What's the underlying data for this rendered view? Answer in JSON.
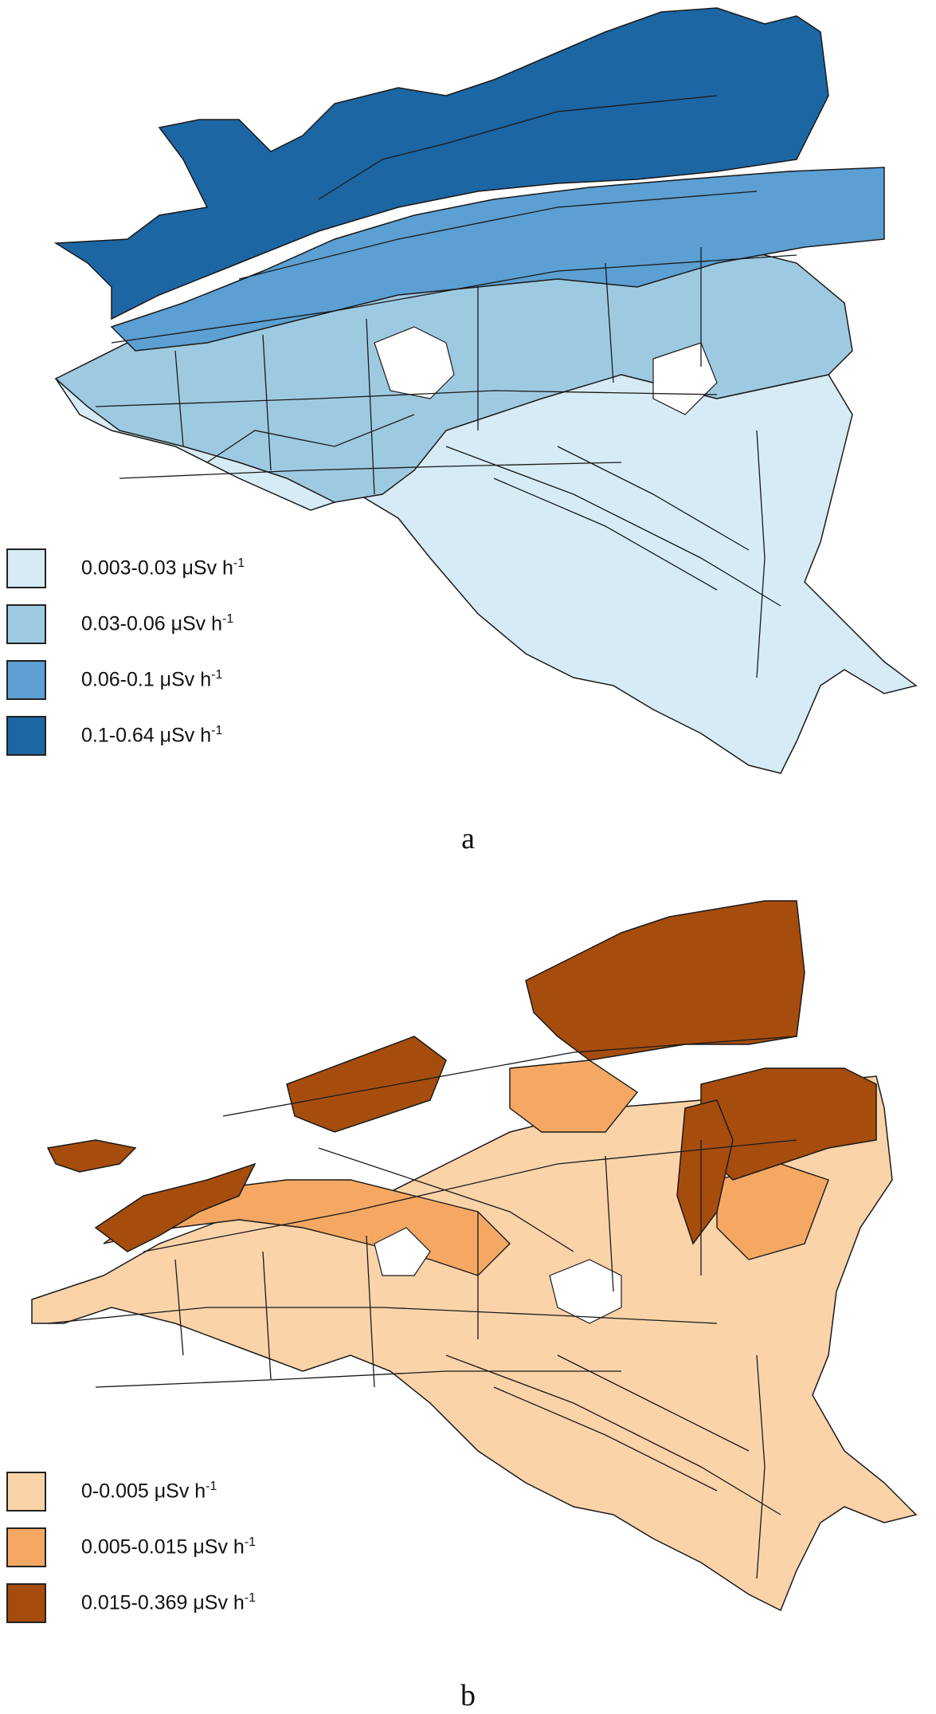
{
  "figure": {
    "panels": [
      {
        "caption": "a",
        "legend": [
          {
            "range": "0.003-0.03 μSv h",
            "unit_exp": "-1",
            "color": "#d6ebf6"
          },
          {
            "range": "0.03-0.06 μSv h",
            "unit_exp": "-1",
            "color": "#9ecae1"
          },
          {
            "range": "0.06-0.1 μSv h",
            "unit_exp": "-1",
            "color": "#5b9fd3"
          },
          {
            "range": "0.1-0.64 μSv h",
            "unit_exp": "-1",
            "color": "#1c66a4"
          }
        ]
      },
      {
        "caption": "b",
        "legend": [
          {
            "range": "0-0.005 μSv h",
            "unit_exp": "-1",
            "color": "#fbd3a9"
          },
          {
            "range": "0.005-0.015 μSv h",
            "unit_exp": "-1",
            "color": "#f5a863"
          },
          {
            "range": "0.015-0.369 μSv h",
            "unit_exp": "-1",
            "color": "#a64d0e"
          }
        ]
      }
    ],
    "boundary_color": "#1a1a1a"
  }
}
